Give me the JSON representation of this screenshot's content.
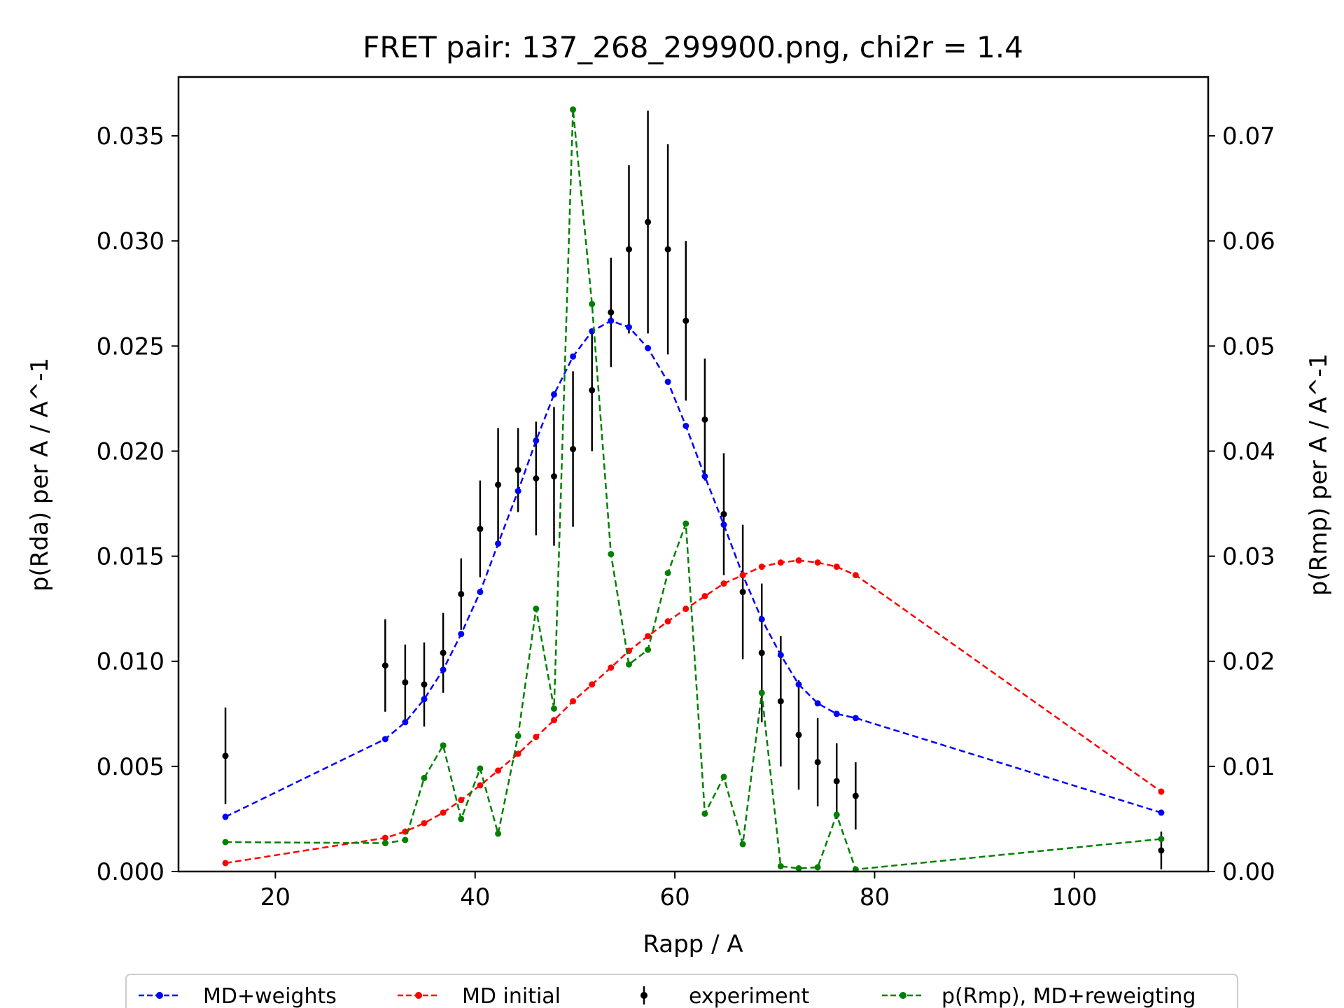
{
  "chart_data": {
    "type": "line",
    "title": "FRET pair: 137_268_299900.png, chi2r = 1.4",
    "xlabel": "Rapp / A",
    "ylabel": "p(Rda) per A / A^-1",
    "ylabel_right": "p(Rmp) per A / A^-1",
    "xlim": [
      10.3,
      113.4
    ],
    "ylim": [
      0,
      0.0378
    ],
    "ylim_right": [
      0,
      0.0756
    ],
    "xticks": [
      20,
      40,
      60,
      80,
      100
    ],
    "xtick_labels": [
      "20",
      "40",
      "60",
      "80",
      "100"
    ],
    "yticks": [
      0,
      0.005,
      0.01,
      0.015,
      0.02,
      0.025,
      0.03,
      0.035
    ],
    "ytick_labels": [
      "0.000",
      "0.005",
      "0.010",
      "0.015",
      "0.020",
      "0.025",
      "0.030",
      "0.035"
    ],
    "yticks_right": [
      0,
      0.01,
      0.02,
      0.03,
      0.04,
      0.05,
      0.06,
      0.07
    ],
    "ytick_labels_right": [
      "0.00",
      "0.01",
      "0.02",
      "0.03",
      "0.04",
      "0.05",
      "0.06",
      "0.07"
    ],
    "colors": {
      "md_weights": "#0000ff",
      "md_initial": "#ff0000",
      "experiment": "#000000",
      "rmp": "#008000",
      "right_axis_label": "#008000"
    },
    "legend_placement": "bottom-center, outside",
    "series": [
      {
        "name": "MD+weights",
        "key": "md_weights",
        "axis": "left",
        "style": "dashed-dots",
        "x": [
          15.0,
          31.0,
          33.0,
          34.9,
          36.8,
          38.6,
          40.5,
          42.3,
          44.3,
          46.1,
          47.9,
          49.8,
          51.7,
          53.6,
          55.4,
          57.3,
          59.3,
          61.1,
          63.0,
          64.9,
          66.8,
          68.7,
          70.6,
          72.4,
          74.3,
          76.2,
          78.1,
          108.7
        ],
        "y": [
          0.0026,
          0.0063,
          0.0071,
          0.0082,
          0.0096,
          0.0113,
          0.0133,
          0.0156,
          0.0181,
          0.0205,
          0.0227,
          0.0245,
          0.0257,
          0.0262,
          0.0259,
          0.0249,
          0.0233,
          0.0212,
          0.0188,
          0.0165,
          0.0141,
          0.012,
          0.0103,
          0.0089,
          0.008,
          0.0075,
          0.0073,
          0.0028
        ]
      },
      {
        "name": "MD initial",
        "key": "md_initial",
        "axis": "left",
        "style": "dashed-dots",
        "x": [
          15.0,
          31.0,
          33.0,
          34.9,
          36.8,
          38.6,
          40.5,
          42.3,
          44.3,
          46.1,
          47.9,
          49.8,
          51.7,
          53.6,
          55.4,
          57.3,
          59.3,
          61.1,
          63.0,
          64.9,
          66.8,
          68.7,
          70.6,
          72.4,
          74.3,
          76.2,
          78.1,
          108.7
        ],
        "y": [
          0.0004,
          0.0016,
          0.0019,
          0.0023,
          0.0028,
          0.0034,
          0.0041,
          0.0048,
          0.0056,
          0.0064,
          0.0072,
          0.0081,
          0.0089,
          0.0097,
          0.0105,
          0.0112,
          0.0119,
          0.0125,
          0.0131,
          0.0137,
          0.0141,
          0.0145,
          0.0147,
          0.0148,
          0.0147,
          0.0145,
          0.0141,
          0.0038
        ]
      },
      {
        "name": "p(Rmp), MD+reweigting",
        "key": "rmp",
        "axis": "right",
        "style": "dashed-dots",
        "x": [
          15.0,
          31.0,
          33.0,
          34.9,
          36.8,
          38.6,
          40.5,
          42.3,
          44.3,
          46.1,
          47.9,
          49.8,
          51.7,
          53.6,
          55.4,
          57.3,
          59.3,
          61.1,
          63.0,
          64.9,
          66.8,
          68.7,
          70.6,
          72.4,
          74.3,
          76.2,
          78.1,
          108.7
        ],
        "y": [
          0.0028,
          0.0027,
          0.003,
          0.0089,
          0.012,
          0.005,
          0.0098,
          0.0036,
          0.0129,
          0.025,
          0.0155,
          0.0725,
          0.054,
          0.0302,
          0.0197,
          0.0211,
          0.0284,
          0.0331,
          0.0055,
          0.009,
          0.0026,
          0.017,
          0.0005,
          0.0003,
          0.0004,
          0.0054,
          0.0002,
          0.0031
        ]
      }
    ],
    "experiment": {
      "name": "experiment",
      "axis": "left",
      "style": "errorbar",
      "x": [
        15.0,
        31.0,
        33.0,
        34.9,
        36.8,
        38.6,
        40.5,
        42.3,
        44.3,
        46.1,
        47.9,
        49.8,
        51.7,
        53.6,
        55.4,
        57.3,
        59.3,
        61.1,
        63.0,
        64.9,
        66.8,
        68.7,
        70.6,
        72.4,
        74.3,
        76.2,
        78.1,
        108.7
      ],
      "y": [
        0.0055,
        0.0098,
        0.009,
        0.0089,
        0.0104,
        0.0132,
        0.0163,
        0.0184,
        0.0191,
        0.0187,
        0.0188,
        0.0201,
        0.0229,
        0.0266,
        0.0296,
        0.0309,
        0.0296,
        0.0262,
        0.0215,
        0.017,
        0.0133,
        0.0104,
        0.0081,
        0.0065,
        0.0052,
        0.0043,
        0.0036,
        0.001
      ],
      "err": [
        0.0023,
        0.0022,
        0.0018,
        0.002,
        0.0019,
        0.0017,
        0.0023,
        0.0027,
        0.002,
        0.0027,
        0.0033,
        0.0037,
        0.0029,
        0.0026,
        0.004,
        0.0053,
        0.005,
        0.0038,
        0.0029,
        0.0029,
        0.0032,
        0.0033,
        0.0031,
        0.0026,
        0.0021,
        0.0018,
        0.0016,
        0.0009
      ]
    }
  }
}
